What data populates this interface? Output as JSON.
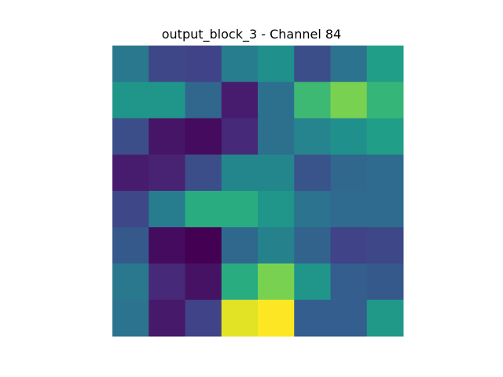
{
  "chart_data": {
    "type": "heatmap",
    "title": "output_block_3 - Channel 84",
    "colormap": "viridis",
    "axes_visible": false,
    "rows": 8,
    "cols": 8,
    "values": [
      [
        0.4,
        0.22,
        0.2,
        0.42,
        0.5,
        0.24,
        0.38,
        0.56
      ],
      [
        0.52,
        0.52,
        0.33,
        0.08,
        0.37,
        0.68,
        0.8,
        0.66
      ],
      [
        0.24,
        0.06,
        0.03,
        0.12,
        0.37,
        0.45,
        0.5,
        0.56
      ],
      [
        0.08,
        0.1,
        0.24,
        0.46,
        0.46,
        0.26,
        0.33,
        0.35
      ],
      [
        0.22,
        0.42,
        0.62,
        0.62,
        0.52,
        0.38,
        0.35,
        0.35
      ],
      [
        0.28,
        0.03,
        0.0,
        0.34,
        0.44,
        0.32,
        0.2,
        0.22
      ],
      [
        0.4,
        0.12,
        0.05,
        0.62,
        0.8,
        0.52,
        0.3,
        0.28
      ],
      [
        0.38,
        0.07,
        0.2,
        0.96,
        1.0,
        0.3,
        0.3,
        0.54
      ]
    ]
  }
}
